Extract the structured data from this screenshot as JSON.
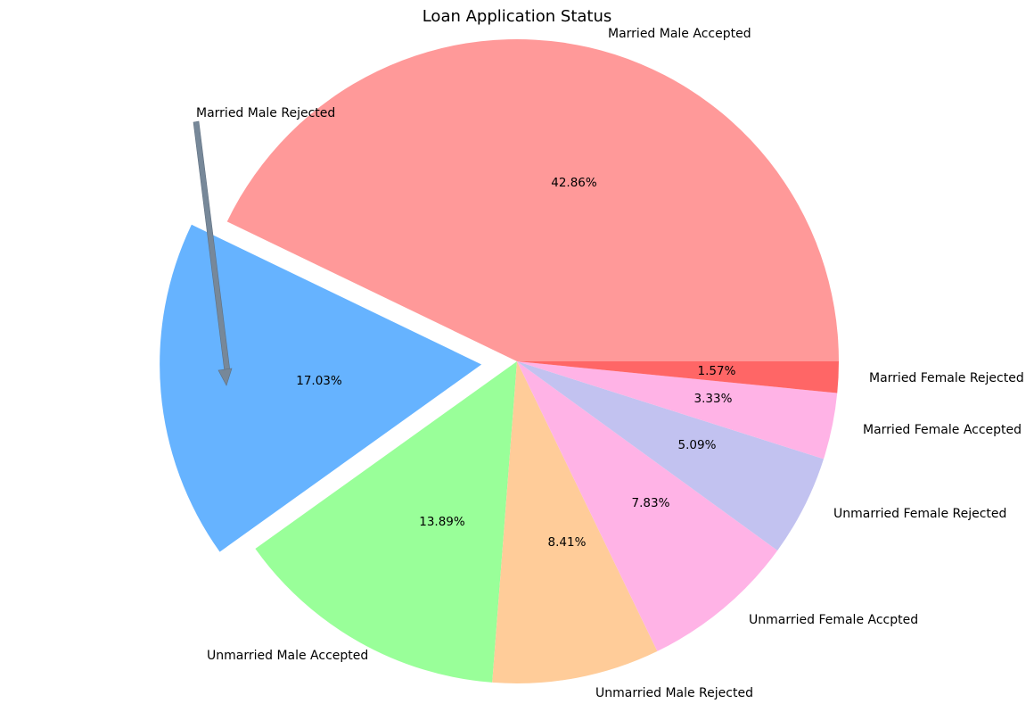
{
  "chart_data": {
    "type": "pie",
    "title": "Loan Application Status",
    "slices": [
      {
        "label": "Married Male Accepted",
        "value": 42.86,
        "pct_label": "42.86%",
        "color": "#ff9999",
        "exploded": false
      },
      {
        "label": "Married Male Rejected",
        "value": 17.03,
        "pct_label": "17.03%",
        "color": "#66b3ff",
        "exploded": true
      },
      {
        "label": "Unmarried Male Accepted",
        "value": 13.89,
        "pct_label": "13.89%",
        "color": "#99ff99",
        "exploded": false
      },
      {
        "label": "Unmarried Male Rejected",
        "value": 8.41,
        "pct_label": "8.41%",
        "color": "#ffcc99",
        "exploded": false
      },
      {
        "label": "Unmarried Female Accpted",
        "value": 7.83,
        "pct_label": "7.83%",
        "color": "#ffb3e6",
        "exploded": false
      },
      {
        "label": "Unmarried Female Rejected",
        "value": 5.09,
        "pct_label": "5.09%",
        "color": "#c2c2f0",
        "exploded": false
      },
      {
        "label": "Married Female Accepted",
        "value": 3.33,
        "pct_label": "3.33%",
        "color": "#ffb3e6",
        "exploded": false
      },
      {
        "label": "Married Female Rejected",
        "value": 1.57,
        "pct_label": "1.57%",
        "color": "#ff6666",
        "exploded": false
      }
    ],
    "annotation": {
      "target": "Married Male Rejected",
      "arrow_color": "#778899"
    }
  }
}
